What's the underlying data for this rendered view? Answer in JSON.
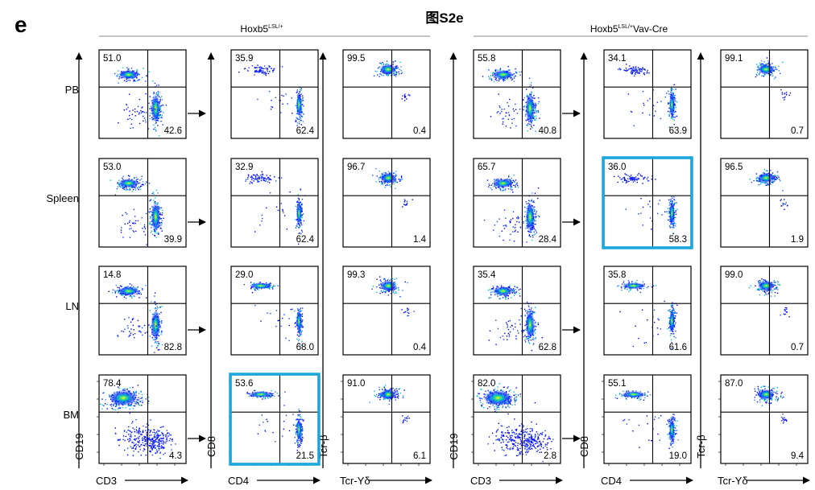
{
  "panel_letter": "e",
  "figure_title": "图S2e",
  "colors": {
    "highlight": "#1aa7e0",
    "density_low": "#0000ff",
    "density_mid": "#00c8c8",
    "density_high": "#ffff00"
  },
  "chart_data": {
    "type": "scatter",
    "subtype": "flow-cytometry-quadrant-grid",
    "groups": [
      {
        "name": "Hoxb5",
        "superscript": "LSL/+",
        "suffix": ""
      },
      {
        "name": "Hoxb5",
        "superscript": "LSL/+",
        "suffix": "Vav-Cre"
      }
    ],
    "tissues": [
      "PB",
      "Spleen",
      "LN",
      "BM"
    ],
    "plot_types": [
      {
        "xlabel": "CD3",
        "ylabel": "CD19"
      },
      {
        "xlabel": "CD4",
        "ylabel": "CD8"
      },
      {
        "xlabel": "Tcr-Yδ",
        "ylabel": "Tcr-β"
      }
    ],
    "values": [
      [
        [
          "51.0",
          "42.6"
        ],
        [
          "35.9",
          "62.4"
        ],
        [
          "99.5",
          "0.4"
        ],
        [
          "55.8",
          "40.8"
        ],
        [
          "34.1",
          "63.9"
        ],
        [
          "99.1",
          "0.7"
        ]
      ],
      [
        [
          "53.0",
          "39.9"
        ],
        [
          "32.9",
          "62.4"
        ],
        [
          "96.7",
          "1.4"
        ],
        [
          "65.7",
          "28.4"
        ],
        [
          "36.0",
          "58.3"
        ],
        [
          "96.5",
          "1.9"
        ]
      ],
      [
        [
          "14.8",
          "82.8"
        ],
        [
          "29.0",
          "68.0"
        ],
        [
          "99.3",
          "0.4"
        ],
        [
          "35.4",
          "62.8"
        ],
        [
          "35.8",
          "61.6"
        ],
        [
          "99.0",
          "0.7"
        ]
      ],
      [
        [
          "78.4",
          "4.3"
        ],
        [
          "53.6",
          "21.5"
        ],
        [
          "91.0",
          "6.1"
        ],
        [
          "82.0",
          "2.8"
        ],
        [
          "55.1",
          "19.0"
        ],
        [
          "87.0",
          "9.4"
        ]
      ]
    ],
    "value_positions": [
      "top-left",
      "bottom-right"
    ],
    "highlighted": [
      {
        "row": 1,
        "col": 4
      },
      {
        "row": 3,
        "col": 1
      }
    ],
    "grid": false,
    "legend": "none"
  }
}
